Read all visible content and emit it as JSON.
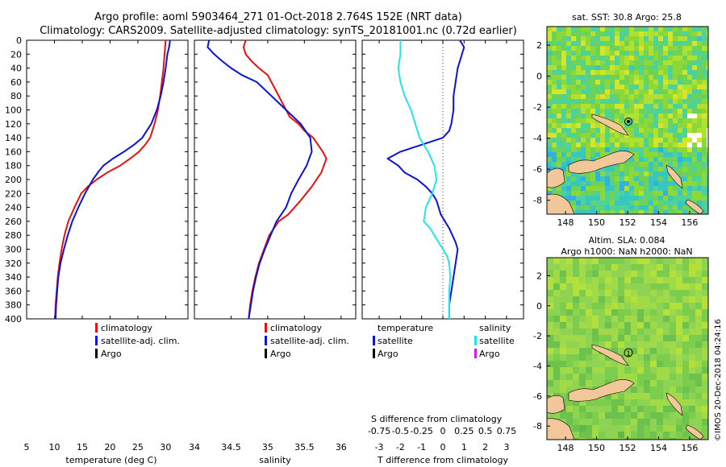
{
  "title_line1": "Argo profile: aoml 5903464_271 01-Oct-2018 2.764S 152E (NRT data)",
  "title_line2": "Climatology: CARS2009. Satellite-adjusted climatology: synTS_20181001.nc (0.72d earlier)",
  "depth_ticks": [
    0,
    20,
    40,
    60,
    80,
    100,
    120,
    140,
    160,
    180,
    200,
    220,
    240,
    260,
    280,
    300,
    320,
    340,
    360,
    380,
    400
  ],
  "colors": {
    "climatology": "#e8120c",
    "satellite": "#0a14d4",
    "argo": "#000000",
    "sat_salinity": "#22e6e8",
    "argo_salinity": "#d020d0"
  },
  "chart_data": [
    {
      "type": "line",
      "name": "temperature",
      "xlabel": "temperature (deg C)",
      "xlim": [
        5,
        34
      ],
      "ylim": [
        400,
        0
      ],
      "xticks": [
        5,
        10,
        15,
        20,
        25,
        30
      ],
      "legend": [
        "climatology",
        "satellite-adj. clim.",
        "Argo"
      ],
      "series": [
        {
          "name": "climatology",
          "color": "#e8120c",
          "x": [
            30.0,
            29.9,
            29.8,
            29.6,
            29.3,
            29.0,
            28.6,
            28.0,
            27.2,
            26.3,
            25.2,
            23.6,
            21.8,
            19.5,
            17.6,
            16.0,
            14.8,
            13.6,
            12.5,
            11.8,
            11.3,
            10.9,
            10.6,
            10.4,
            10.2,
            10.1
          ],
          "y": [
            0,
            10,
            20,
            40,
            60,
            80,
            100,
            120,
            140,
            150,
            160,
            170,
            180,
            190,
            200,
            210,
            220,
            240,
            260,
            280,
            300,
            320,
            340,
            360,
            380,
            400
          ]
        },
        {
          "name": "satellite-adj. clim.",
          "color": "#0a14d4",
          "x": [
            30.8,
            30.6,
            30.3,
            30.0,
            29.6,
            29.1,
            28.4,
            27.4,
            25.8,
            24.3,
            22.5,
            20.5,
            18.8,
            17.8,
            16.9,
            16.2,
            15.5,
            14.3,
            13.2,
            12.4,
            11.7,
            11.1,
            10.7,
            10.5,
            10.3,
            10.2
          ],
          "y": [
            0,
            10,
            20,
            40,
            60,
            80,
            100,
            120,
            140,
            150,
            160,
            170,
            180,
            190,
            200,
            210,
            220,
            240,
            260,
            280,
            300,
            320,
            340,
            360,
            380,
            400
          ]
        }
      ]
    },
    {
      "type": "line",
      "name": "salinity",
      "xlabel": "salinity",
      "xlim": [
        34,
        36.2
      ],
      "ylim": [
        400,
        0
      ],
      "xticks": [
        34,
        34.5,
        35,
        35.5,
        36
      ],
      "legend": [
        "climatology",
        "satellite-adj. clim.",
        "Argo"
      ],
      "series": [
        {
          "name": "climatology",
          "color": "#e8120c",
          "x": [
            34.7,
            34.67,
            34.7,
            34.78,
            34.88,
            35.0,
            35.1,
            35.2,
            35.3,
            35.42,
            35.5,
            35.62,
            35.75,
            35.8,
            35.73,
            35.6,
            35.45,
            35.28,
            35.15,
            35.02,
            34.95,
            34.88,
            34.83,
            34.79,
            34.76,
            34.74
          ],
          "y": [
            0,
            10,
            20,
            30,
            40,
            50,
            70,
            90,
            110,
            120,
            130,
            140,
            160,
            170,
            190,
            210,
            230,
            250,
            260,
            280,
            300,
            320,
            340,
            360,
            380,
            400
          ]
        },
        {
          "name": "satellite-adj. clim.",
          "color": "#0a14d4",
          "x": [
            34.2,
            34.18,
            34.27,
            34.38,
            34.5,
            34.65,
            34.85,
            35.05,
            35.25,
            35.45,
            35.58,
            35.6,
            35.53,
            35.42,
            35.32,
            35.25,
            35.12,
            35.04,
            34.96,
            34.89,
            34.84,
            34.8,
            34.77,
            34.74
          ],
          "y": [
            0,
            10,
            20,
            30,
            40,
            50,
            60,
            80,
            100,
            120,
            140,
            160,
            180,
            200,
            220,
            240,
            260,
            280,
            300,
            320,
            340,
            360,
            380,
            400
          ]
        }
      ]
    },
    {
      "type": "line",
      "name": "difference",
      "xlabel": "T difference from climatology",
      "top_label": "S difference from climatology",
      "xlim": [
        -3.8,
        3.8
      ],
      "ylim": [
        400,
        0
      ],
      "xticks": [
        -3,
        -2,
        -1,
        0,
        1,
        2,
        3
      ],
      "sticks": [
        "-0.75",
        "-0.5",
        "-0.25",
        "0",
        "0.25",
        "0.5",
        "0.75"
      ],
      "legend_t": {
        "title": "temperature",
        "items": [
          "satellite",
          "Argo"
        ]
      },
      "legend_s": {
        "title": "salinity",
        "items": [
          "satellite",
          "Argo"
        ]
      },
      "series": [
        {
          "name": "T satellite",
          "color": "#0a14d4",
          "x": [
            0.8,
            1.0,
            0.9,
            0.7,
            0.6,
            0.5,
            0.5,
            0.4,
            0.3,
            0.0,
            -1.0,
            -2.0,
            -2.6,
            -2.1,
            -1.8,
            -1.2,
            -0.8,
            -0.5,
            -0.3,
            -0.1,
            0.3,
            0.6,
            0.7,
            0.6,
            0.5,
            0.4,
            0.3,
            0.3
          ],
          "y": [
            0,
            10,
            20,
            40,
            60,
            80,
            100,
            120,
            130,
            140,
            150,
            160,
            170,
            180,
            190,
            200,
            210,
            220,
            230,
            250,
            270,
            290,
            300,
            320,
            340,
            360,
            380,
            400
          ]
        },
        {
          "name": "S satellite",
          "color": "#22e6e8",
          "x": [
            -2.0,
            -2.0,
            -2.1,
            -2.0,
            -1.8,
            -1.5,
            -1.3,
            -1.1,
            -0.7,
            -0.4,
            -0.3,
            -0.5,
            -0.8,
            -0.9,
            -0.6,
            -0.4,
            -0.2,
            0.0,
            0.2,
            0.3,
            0.35,
            0.3,
            0.3,
            0.3,
            0.3
          ],
          "y": [
            0,
            20,
            40,
            60,
            80,
            100,
            120,
            140,
            160,
            180,
            200,
            220,
            240,
            260,
            270,
            280,
            290,
            300,
            310,
            320,
            340,
            360,
            380,
            390,
            400
          ]
        }
      ]
    }
  ],
  "map_sst": {
    "title": "sat. SST: 30.8 Argo: 25.8",
    "xticks": [
      "148",
      "150",
      "152",
      "154",
      "156"
    ],
    "yticks": [
      "2",
      "0",
      "-2",
      "-4",
      "-6",
      "-8"
    ]
  },
  "map_sla": {
    "title_line1": "Altim. SLA: 0.084",
    "title_line2": "Argo h1000: NaN h2000: NaN",
    "xticks": [
      "148",
      "150",
      "152",
      "154",
      "156"
    ],
    "yticks": [
      "2",
      "0",
      "-2",
      "-4",
      "-6",
      "-8"
    ],
    "marker": "1"
  },
  "credit": "©IMOS 20-Dec-2018 04:24:16"
}
